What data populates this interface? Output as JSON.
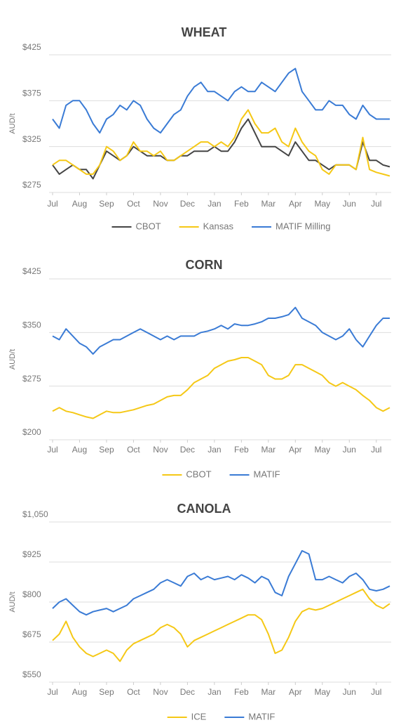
{
  "chart_data": [
    {
      "type": "line",
      "title": "WHEAT",
      "y_label": "AUD/t",
      "categories": [
        "Jul",
        null,
        null,
        null,
        "Aug",
        null,
        null,
        null,
        "Sep",
        null,
        null,
        null,
        "Oct",
        null,
        null,
        null,
        "Nov",
        null,
        null,
        null,
        "Dec",
        null,
        null,
        null,
        "Jan",
        null,
        null,
        null,
        "Feb",
        null,
        null,
        null,
        "Mar",
        null,
        null,
        null,
        "Apr",
        null,
        null,
        null,
        "May",
        null,
        null,
        null,
        "Jun",
        null,
        null,
        null,
        "Jul",
        null,
        null
      ],
      "ylim": [
        275,
        425
      ],
      "yticks": [
        {
          "value": 275,
          "label": "$275"
        },
        {
          "value": 325,
          "label": "$325"
        },
        {
          "value": 375,
          "label": "$375"
        },
        {
          "value": 425,
          "label": "$425"
        }
      ],
      "grid": true,
      "legend": "bottom",
      "series": [
        {
          "name": "CBOT",
          "color": "#454545",
          "values": [
            305,
            295,
            300,
            305,
            300,
            300,
            290,
            305,
            320,
            315,
            310,
            315,
            325,
            320,
            315,
            315,
            315,
            310,
            310,
            315,
            315,
            320,
            320,
            320,
            325,
            320,
            320,
            330,
            345,
            355,
            340,
            325,
            325,
            325,
            320,
            315,
            330,
            320,
            310,
            310,
            305,
            300,
            305,
            305,
            305,
            300,
            330,
            310,
            310,
            305,
            303
          ]
        },
        {
          "name": "Kansas",
          "color": "#f5c816",
          "values": [
            305,
            310,
            310,
            305,
            300,
            295,
            295,
            305,
            325,
            320,
            310,
            315,
            330,
            320,
            320,
            315,
            320,
            310,
            310,
            315,
            320,
            325,
            330,
            330,
            325,
            330,
            325,
            335,
            355,
            365,
            350,
            340,
            340,
            345,
            330,
            325,
            345,
            330,
            320,
            315,
            300,
            295,
            305,
            305,
            305,
            300,
            335,
            300,
            297,
            295,
            293
          ]
        },
        {
          "name": "MATIF Milling",
          "color": "#3a7bd5",
          "values": [
            355,
            345,
            370,
            375,
            375,
            365,
            350,
            340,
            355,
            360,
            370,
            365,
            375,
            370,
            355,
            345,
            340,
            350,
            360,
            365,
            380,
            390,
            395,
            385,
            385,
            380,
            375,
            385,
            390,
            385,
            385,
            395,
            390,
            385,
            395,
            405,
            410,
            385,
            375,
            365,
            365,
            375,
            370,
            370,
            360,
            355,
            370,
            360,
            355,
            355,
            355
          ]
        }
      ]
    },
    {
      "type": "line",
      "title": "CORN",
      "y_label": "AUD/t",
      "categories": [
        "Jul",
        null,
        null,
        null,
        "Aug",
        null,
        null,
        null,
        "Sep",
        null,
        null,
        null,
        "Oct",
        null,
        null,
        null,
        "Nov",
        null,
        null,
        null,
        "Dec",
        null,
        null,
        null,
        "Jan",
        null,
        null,
        null,
        "Feb",
        null,
        null,
        null,
        "Mar",
        null,
        null,
        null,
        "Apr",
        null,
        null,
        null,
        "May",
        null,
        null,
        null,
        "Jun",
        null,
        null,
        null,
        "Jul",
        null,
        null
      ],
      "ylim": [
        200,
        425
      ],
      "yticks": [
        {
          "value": 200,
          "label": "$200"
        },
        {
          "value": 275,
          "label": "$275"
        },
        {
          "value": 350,
          "label": "$350"
        },
        {
          "value": 425,
          "label": "$425"
        }
      ],
      "grid": true,
      "legend": "bottom",
      "series": [
        {
          "name": "CBOT",
          "color": "#f5c816",
          "values": [
            240,
            245,
            240,
            238,
            235,
            232,
            230,
            235,
            240,
            238,
            238,
            240,
            242,
            245,
            248,
            250,
            255,
            260,
            262,
            262,
            270,
            280,
            285,
            290,
            300,
            305,
            310,
            312,
            315,
            315,
            310,
            305,
            290,
            285,
            285,
            290,
            305,
            305,
            300,
            295,
            290,
            280,
            275,
            280,
            275,
            270,
            262,
            255,
            245,
            240,
            245
          ]
        },
        {
          "name": "MATIF",
          "color": "#3a7bd5",
          "values": [
            345,
            340,
            355,
            345,
            335,
            330,
            320,
            330,
            335,
            340,
            340,
            345,
            350,
            355,
            350,
            345,
            340,
            345,
            340,
            345,
            345,
            345,
            350,
            352,
            355,
            360,
            355,
            362,
            360,
            360,
            362,
            365,
            370,
            370,
            372,
            375,
            385,
            370,
            365,
            360,
            350,
            345,
            340,
            345,
            355,
            340,
            330,
            345,
            360,
            370,
            370
          ]
        }
      ]
    },
    {
      "type": "line",
      "title": "CANOLA",
      "y_label": "AUD/t",
      "categories": [
        "Jul",
        null,
        null,
        null,
        "Aug",
        null,
        null,
        null,
        "Sep",
        null,
        null,
        null,
        "Oct",
        null,
        null,
        null,
        "Nov",
        null,
        null,
        null,
        "Dec",
        null,
        null,
        null,
        "Jan",
        null,
        null,
        null,
        "Feb",
        null,
        null,
        null,
        "Mar",
        null,
        null,
        null,
        "Apr",
        null,
        null,
        null,
        "May",
        null,
        null,
        null,
        "Jun",
        null,
        null,
        null,
        "Jul",
        null,
        null
      ],
      "ylim": [
        550,
        1050
      ],
      "yticks": [
        {
          "value": 550,
          "label": "$550"
        },
        {
          "value": 675,
          "label": "$675"
        },
        {
          "value": 800,
          "label": "$800"
        },
        {
          "value": 925,
          "label": "$925"
        },
        {
          "value": 1050,
          "label": "$1,050"
        }
      ],
      "grid": true,
      "legend": "bottom",
      "series": [
        {
          "name": "ICE",
          "color": "#f5c816",
          "values": [
            680,
            700,
            740,
            690,
            660,
            640,
            630,
            640,
            650,
            640,
            615,
            650,
            670,
            680,
            690,
            700,
            720,
            730,
            720,
            700,
            660,
            680,
            690,
            700,
            710,
            720,
            730,
            740,
            750,
            760,
            760,
            745,
            700,
            640,
            650,
            690,
            740,
            770,
            780,
            775,
            780,
            790,
            800,
            810,
            820,
            830,
            840,
            810,
            790,
            780,
            795
          ]
        },
        {
          "name": "MATIF",
          "color": "#3a7bd5",
          "values": [
            780,
            800,
            810,
            790,
            770,
            760,
            770,
            775,
            780,
            770,
            780,
            790,
            810,
            820,
            830,
            840,
            860,
            870,
            860,
            850,
            880,
            890,
            870,
            880,
            870,
            875,
            880,
            870,
            885,
            875,
            860,
            880,
            870,
            830,
            820,
            880,
            920,
            960,
            950,
            870,
            870,
            880,
            870,
            860,
            880,
            890,
            870,
            840,
            835,
            840,
            850
          ]
        }
      ]
    }
  ]
}
